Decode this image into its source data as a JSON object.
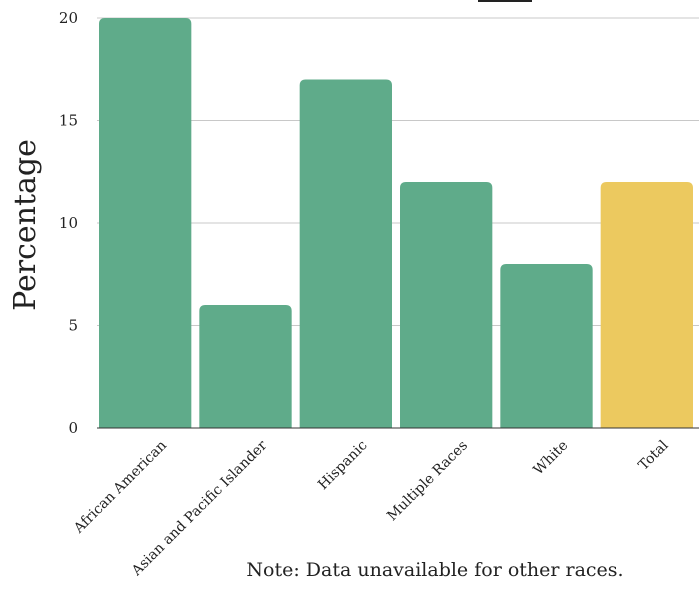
{
  "chart_data": {
    "type": "bar",
    "title": "",
    "xlabel": "",
    "ylabel": "Percentage",
    "ylim": [
      0,
      20
    ],
    "yticks": [
      0,
      5,
      10,
      15,
      20
    ],
    "grid": true,
    "categories": [
      "African American",
      "Asian and Pacific Islander",
      "Hispanic",
      "Multiple Races",
      "White",
      "Total"
    ],
    "values": [
      20,
      6,
      17,
      12,
      8,
      12
    ],
    "colors": [
      "#5fab8a",
      "#5fab8a",
      "#5fab8a",
      "#5fab8a",
      "#5fab8a",
      "#ecc95f"
    ],
    "note": "Note: Data unavailable for other races."
  }
}
